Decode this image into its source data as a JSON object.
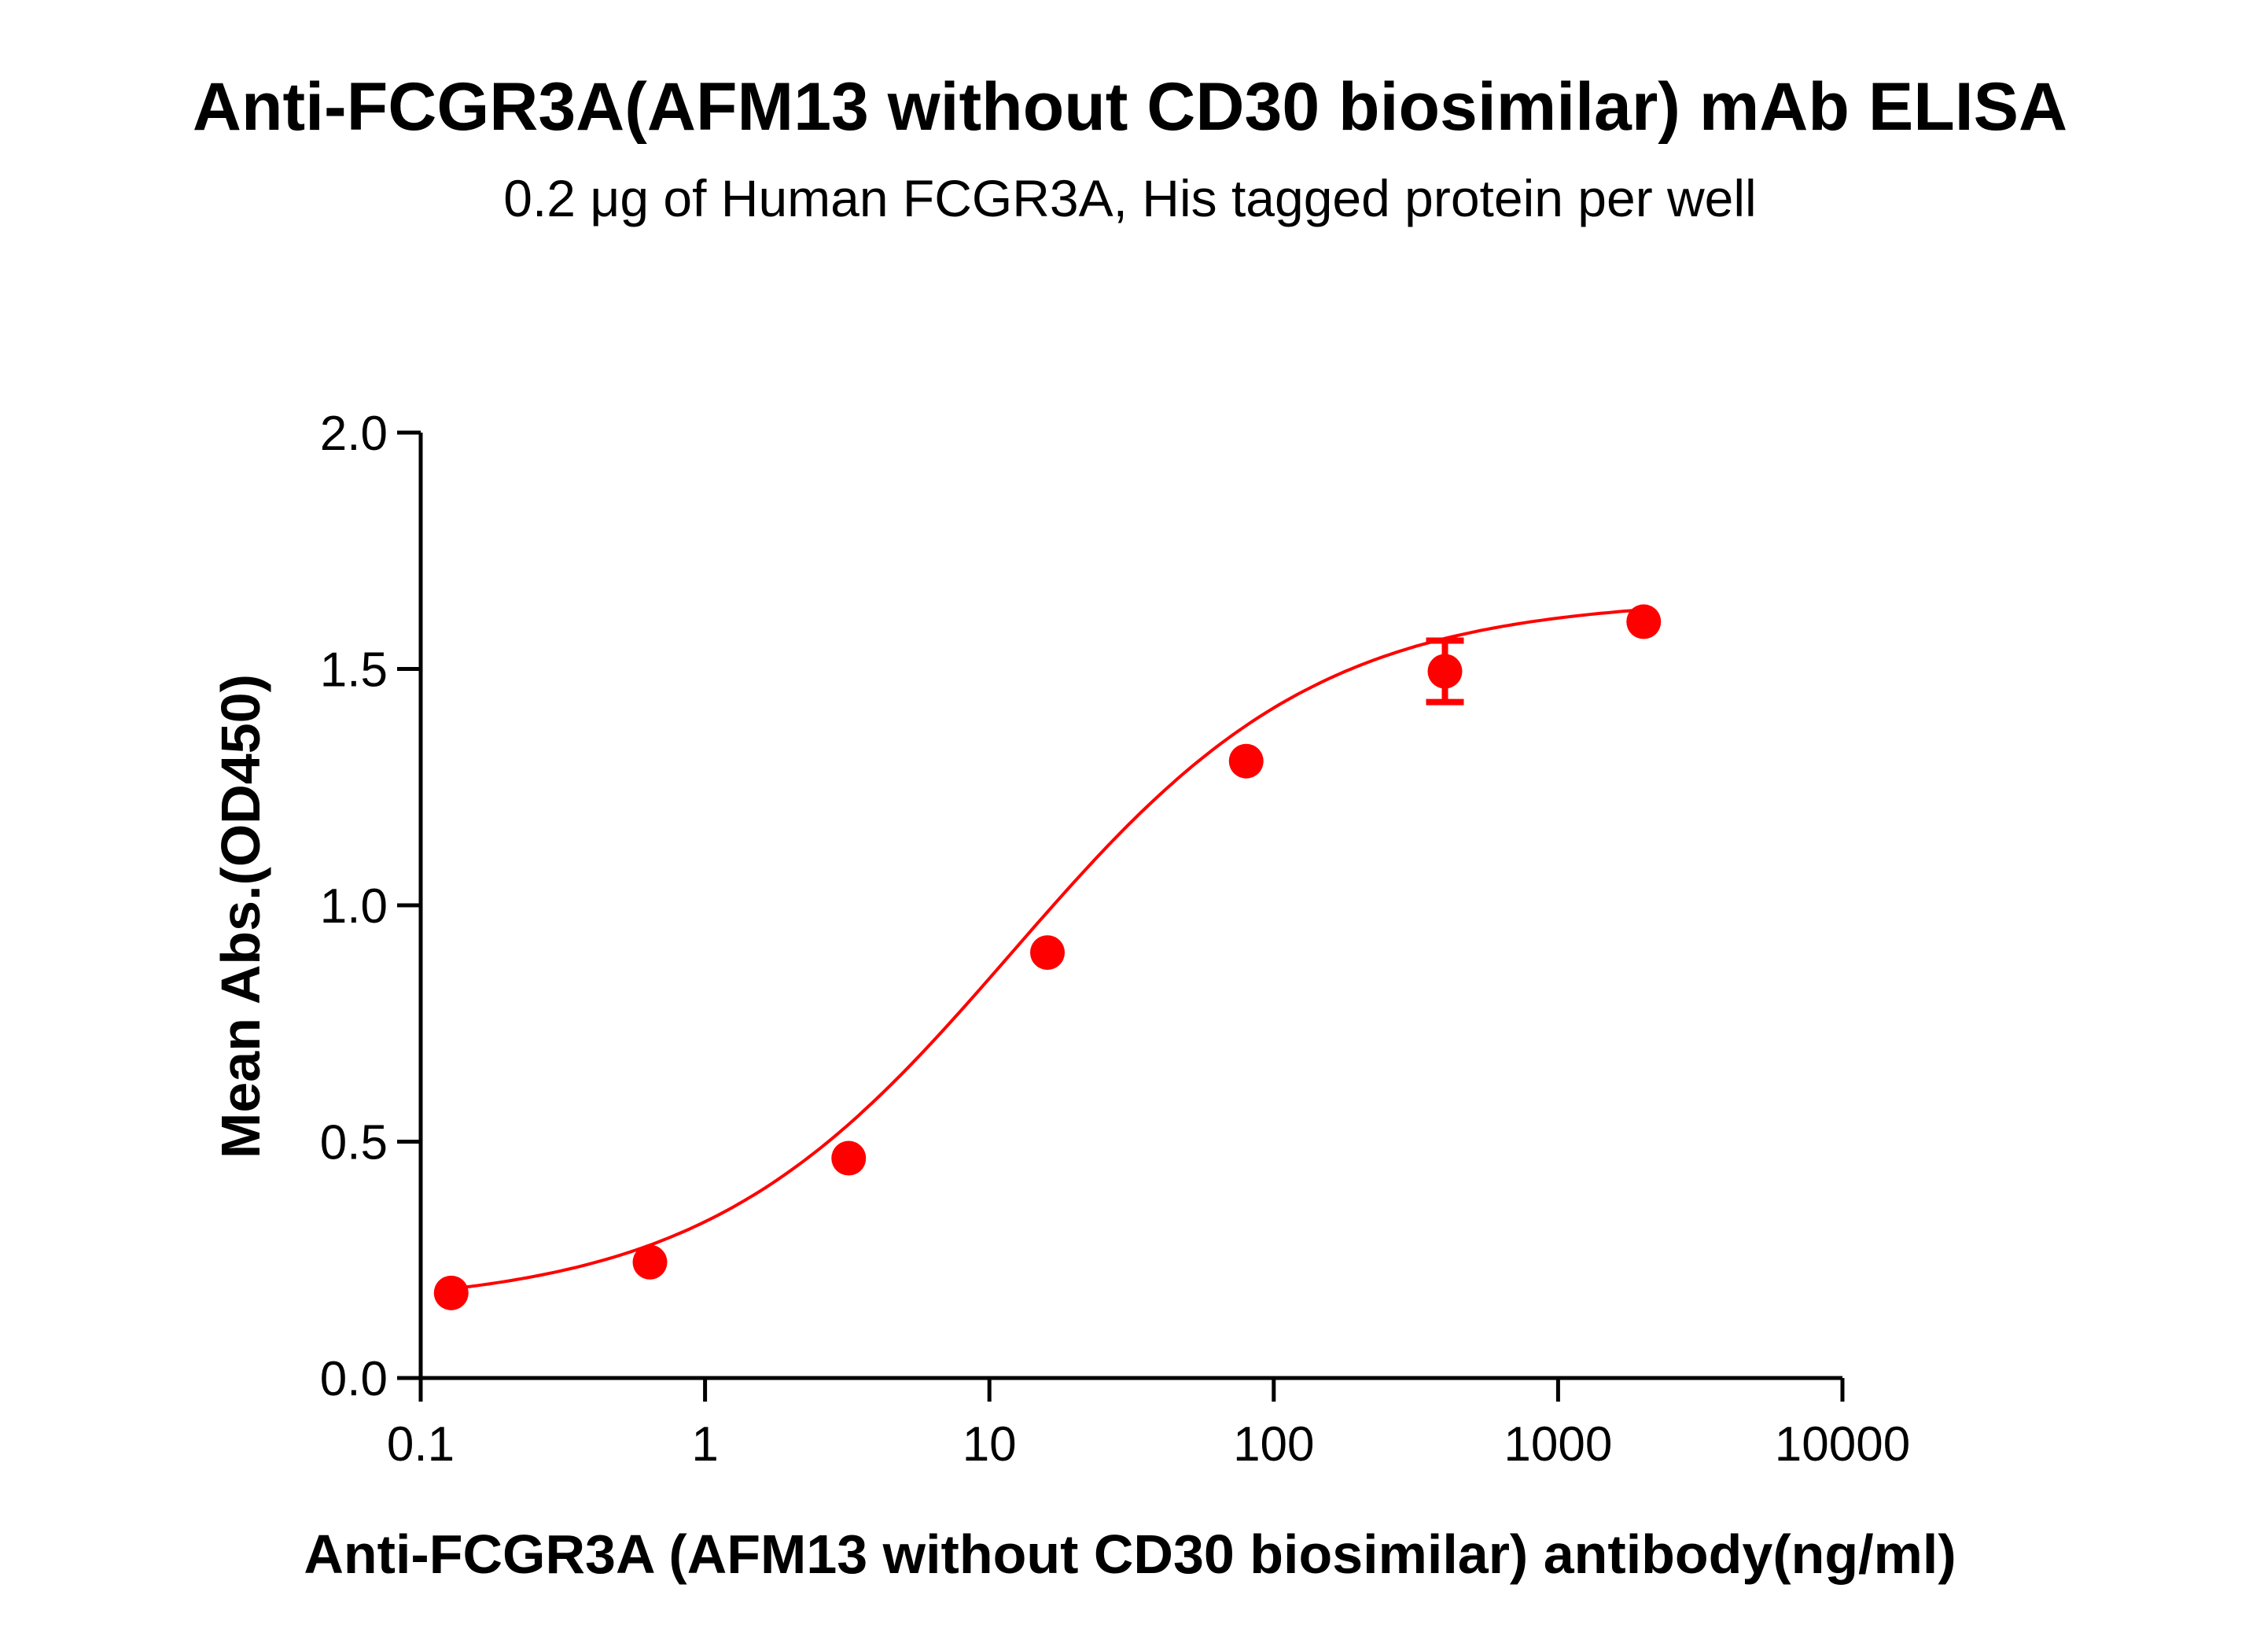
{
  "chart_data": {
    "type": "scatter",
    "title": "Anti-FCGR3A(AFM13 without CD30 biosimilar) mAb ELISA",
    "subtitle": "0.2 μg of Human FCGR3A, His tagged protein per well",
    "xlabel": "Anti-FCGR3A (AFM13 without CD30 biosimilar) antibody(ng/ml)",
    "ylabel": "Mean Abs.(OD450)",
    "x_scale": "log",
    "xlim": [
      0.1,
      10000
    ],
    "ylim": [
      0,
      2.0
    ],
    "x_ticks": [
      0.1,
      1,
      10,
      100,
      1000,
      10000
    ],
    "x_tick_labels": [
      "0.1",
      "1",
      "10",
      "100",
      "1000",
      "10000"
    ],
    "y_ticks": [
      0,
      0.5,
      1.0,
      1.5,
      2.0
    ],
    "y_tick_labels": [
      "0.0",
      "0.5",
      "1.0",
      "1.5",
      "2.0"
    ],
    "grid": false,
    "color": "#ff0000",
    "series": [
      {
        "x": [
          0.128,
          0.64,
          3.2,
          16,
          80,
          400,
          2000
        ],
        "y": [
          0.18,
          0.245,
          0.465,
          0.9,
          1.305,
          1.495,
          1.6
        ],
        "error": [
          0,
          0,
          0,
          0,
          0,
          0.065,
          0
        ]
      }
    ],
    "fit_curve": {
      "model": "4PL",
      "bottom": 0.15,
      "top": 1.65,
      "ec50": 12,
      "hill": 0.8
    }
  }
}
